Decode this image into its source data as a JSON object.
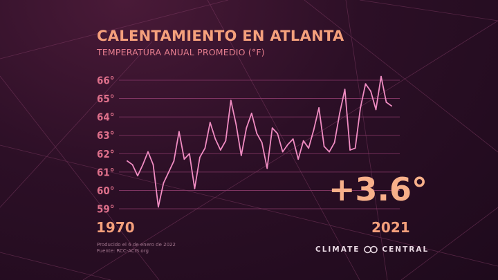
{
  "header": {
    "title": "CALENTAMIENTO EN ATLANTA",
    "subtitle": "TEMPERATURA ANUAL PROMEDIO (°F)"
  },
  "footer": {
    "produced": "Producido el 6 de enero de 2022",
    "source": "Fuente: RCC-ACIS.org"
  },
  "brand": {
    "word1": "CLIMATE",
    "word2": "CENTRAL",
    "icon": "infinity-logo-icon"
  },
  "colors": {
    "line": "#f08cc2",
    "grid": "#8a3a6a",
    "tick": "#dd6f8a",
    "accent": "#f5a07c"
  },
  "chart_data": {
    "type": "line",
    "title": "CALENTAMIENTO EN ATLANTA",
    "subtitle": "TEMPERATURA ANUAL PROMEDIO (°F)",
    "x_start_label": "1970",
    "x_end_label": "2021",
    "change_label": "+3.6°",
    "yticks": [
      "59°",
      "60°",
      "61°",
      "62°",
      "63°",
      "64°",
      "65°",
      "66°"
    ],
    "ylim": [
      59,
      66
    ],
    "xlim": [
      1970,
      2021
    ],
    "grid": true,
    "x": [
      1970,
      1971,
      1972,
      1973,
      1974,
      1975,
      1976,
      1977,
      1978,
      1979,
      1980,
      1981,
      1982,
      1983,
      1984,
      1985,
      1986,
      1987,
      1988,
      1989,
      1990,
      1991,
      1992,
      1993,
      1994,
      1995,
      1996,
      1997,
      1998,
      1999,
      2000,
      2001,
      2002,
      2003,
      2004,
      2005,
      2006,
      2007,
      2008,
      2009,
      2010,
      2011,
      2012,
      2013,
      2014,
      2015,
      2016,
      2017,
      2018,
      2019,
      2020,
      2021
    ],
    "y": [
      61.6,
      61.4,
      60.8,
      61.4,
      62.1,
      61.4,
      59.1,
      60.4,
      61.0,
      61.6,
      63.2,
      61.7,
      62.0,
      60.1,
      61.8,
      62.3,
      63.7,
      62.8,
      62.2,
      62.7,
      64.9,
      63.6,
      61.9,
      63.4,
      64.2,
      63.1,
      62.6,
      61.2,
      63.4,
      63.1,
      62.1,
      62.5,
      62.8,
      61.7,
      62.7,
      62.3,
      63.3,
      64.5,
      62.4,
      62.1,
      62.6,
      64.2,
      65.5,
      62.2,
      62.3,
      64.5,
      65.8,
      65.4,
      64.4,
      66.2,
      64.8,
      64.6
    ]
  }
}
